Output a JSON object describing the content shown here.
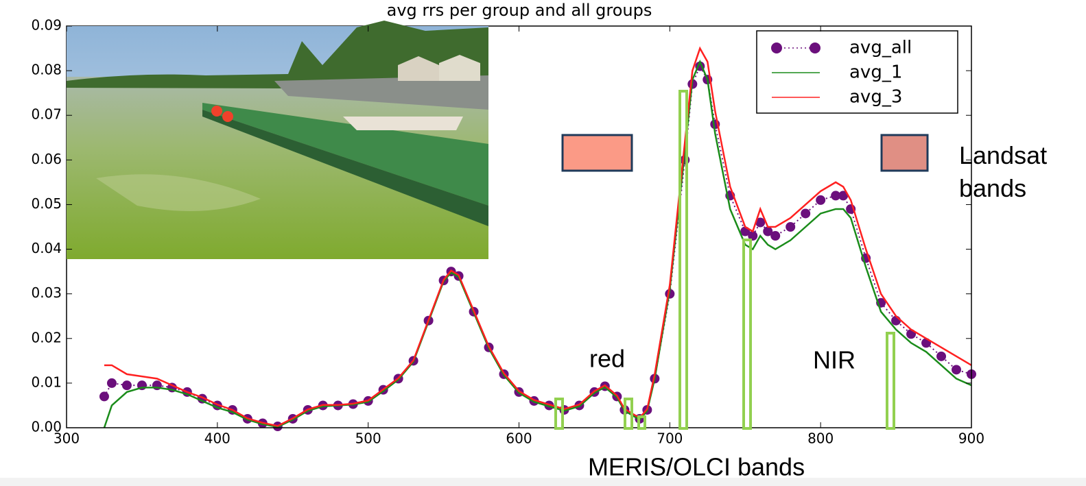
{
  "chart_data": {
    "type": "line",
    "title": "avg rrs per group and all groups",
    "x": [
      325,
      330,
      340,
      350,
      360,
      370,
      380,
      390,
      400,
      410,
      420,
      430,
      440,
      450,
      460,
      470,
      480,
      490,
      500,
      510,
      520,
      530,
      540,
      550,
      555,
      560,
      570,
      580,
      590,
      600,
      610,
      620,
      630,
      640,
      650,
      657,
      665,
      670,
      680,
      685,
      690,
      700,
      710,
      715,
      720,
      725,
      730,
      740,
      750,
      755,
      760,
      765,
      770,
      780,
      790,
      800,
      810,
      815,
      820,
      830,
      840,
      850,
      860,
      870,
      880,
      890,
      900
    ],
    "series": [
      {
        "name": "avg_all",
        "color": "#6b0f7c",
        "marker": "o",
        "linestyle": "dotted",
        "values": [
          0.007,
          0.01,
          0.0095,
          0.0095,
          0.0095,
          0.009,
          0.008,
          0.0065,
          0.005,
          0.004,
          0.002,
          0.001,
          0.0003,
          0.002,
          0.004,
          0.005,
          0.005,
          0.0053,
          0.006,
          0.0085,
          0.011,
          0.015,
          0.024,
          0.033,
          0.035,
          0.034,
          0.026,
          0.018,
          0.012,
          0.008,
          0.006,
          0.005,
          0.004,
          0.005,
          0.008,
          0.0093,
          0.007,
          0.004,
          0.002,
          0.004,
          0.011,
          0.03,
          0.06,
          0.077,
          0.081,
          0.078,
          0.068,
          0.052,
          0.044,
          0.043,
          0.046,
          0.044,
          0.043,
          0.045,
          0.048,
          0.051,
          0.052,
          0.052,
          0.049,
          0.038,
          0.028,
          0.024,
          0.021,
          0.019,
          0.016,
          0.013,
          0.012
        ]
      },
      {
        "name": "avg_1",
        "color": "#1a8c1a",
        "linestyle": "solid",
        "values": [
          0.0,
          0.005,
          0.008,
          0.009,
          0.009,
          0.0085,
          0.0075,
          0.006,
          0.0045,
          0.0035,
          0.0018,
          0.0008,
          0.0002,
          0.0018,
          0.0038,
          0.0048,
          0.005,
          0.0052,
          0.0058,
          0.0082,
          0.0108,
          0.0148,
          0.0238,
          0.0328,
          0.0348,
          0.0338,
          0.0258,
          0.0178,
          0.0118,
          0.0078,
          0.0058,
          0.0048,
          0.0038,
          0.0048,
          0.0078,
          0.0091,
          0.0068,
          0.0038,
          0.0018,
          0.0038,
          0.011,
          0.031,
          0.062,
          0.078,
          0.082,
          0.078,
          0.066,
          0.049,
          0.041,
          0.04,
          0.043,
          0.041,
          0.04,
          0.042,
          0.045,
          0.048,
          0.049,
          0.049,
          0.047,
          0.036,
          0.026,
          0.022,
          0.019,
          0.017,
          0.014,
          0.011,
          0.0095
        ]
      },
      {
        "name": "avg_3",
        "color": "#ff2020",
        "linestyle": "solid",
        "values": [
          0.014,
          0.014,
          0.012,
          0.0115,
          0.011,
          0.0095,
          0.008,
          0.0068,
          0.0052,
          0.004,
          0.0021,
          0.0011,
          0.0004,
          0.0021,
          0.0041,
          0.0051,
          0.0051,
          0.0054,
          0.0061,
          0.0086,
          0.0111,
          0.0151,
          0.0241,
          0.0331,
          0.0352,
          0.0342,
          0.0262,
          0.0182,
          0.0122,
          0.0082,
          0.0062,
          0.0052,
          0.0042,
          0.0052,
          0.0082,
          0.0095,
          0.0072,
          0.0042,
          0.0022,
          0.0042,
          0.012,
          0.032,
          0.064,
          0.08,
          0.085,
          0.082,
          0.071,
          0.054,
          0.045,
          0.044,
          0.049,
          0.045,
          0.045,
          0.047,
          0.05,
          0.053,
          0.055,
          0.054,
          0.051,
          0.04,
          0.03,
          0.025,
          0.022,
          0.02,
          0.018,
          0.016,
          0.014
        ]
      }
    ],
    "xlim": [
      300,
      900
    ],
    "xticks": [
      300,
      400,
      500,
      600,
      700,
      800,
      900
    ],
    "ylim": [
      0,
      0.09
    ],
    "yticks": [
      {
        "value": 0,
        "label": "0.00"
      },
      {
        "value": 0.01,
        "label": "0.01"
      },
      {
        "value": 0.02,
        "label": "0.02"
      },
      {
        "value": 0.03,
        "label": "0.03"
      },
      {
        "value": 0.04,
        "label": "0.04"
      },
      {
        "value": 0.05,
        "label": "0.05"
      },
      {
        "value": 0.06,
        "label": "0.06"
      },
      {
        "value": 0.07,
        "label": "0.07"
      },
      {
        "value": 0.08,
        "label": "0.08"
      },
      {
        "value": 0.09,
        "label": "0.09"
      }
    ],
    "legend": "upper right",
    "annotations": {
      "red": "red",
      "nir": "NIR",
      "landsat": "Landsat bands",
      "meris": "MERIS/OLCI bands"
    }
  }
}
